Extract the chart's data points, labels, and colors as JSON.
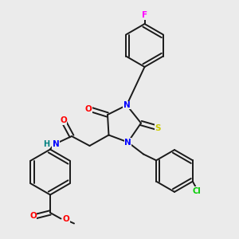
{
  "bg_color": "#ebebeb",
  "figsize": [
    3.0,
    3.0
  ],
  "dpi": 100,
  "atom_colors": {
    "N": "#0000FF",
    "O": "#FF0000",
    "S": "#CCCC00",
    "F": "#FF00FF",
    "Cl": "#00CC00",
    "H": "#008080",
    "C": "#1a1a1a"
  },
  "bond_color": "#1a1a1a",
  "bond_width": 1.4,
  "font_size_atom": 7.5
}
